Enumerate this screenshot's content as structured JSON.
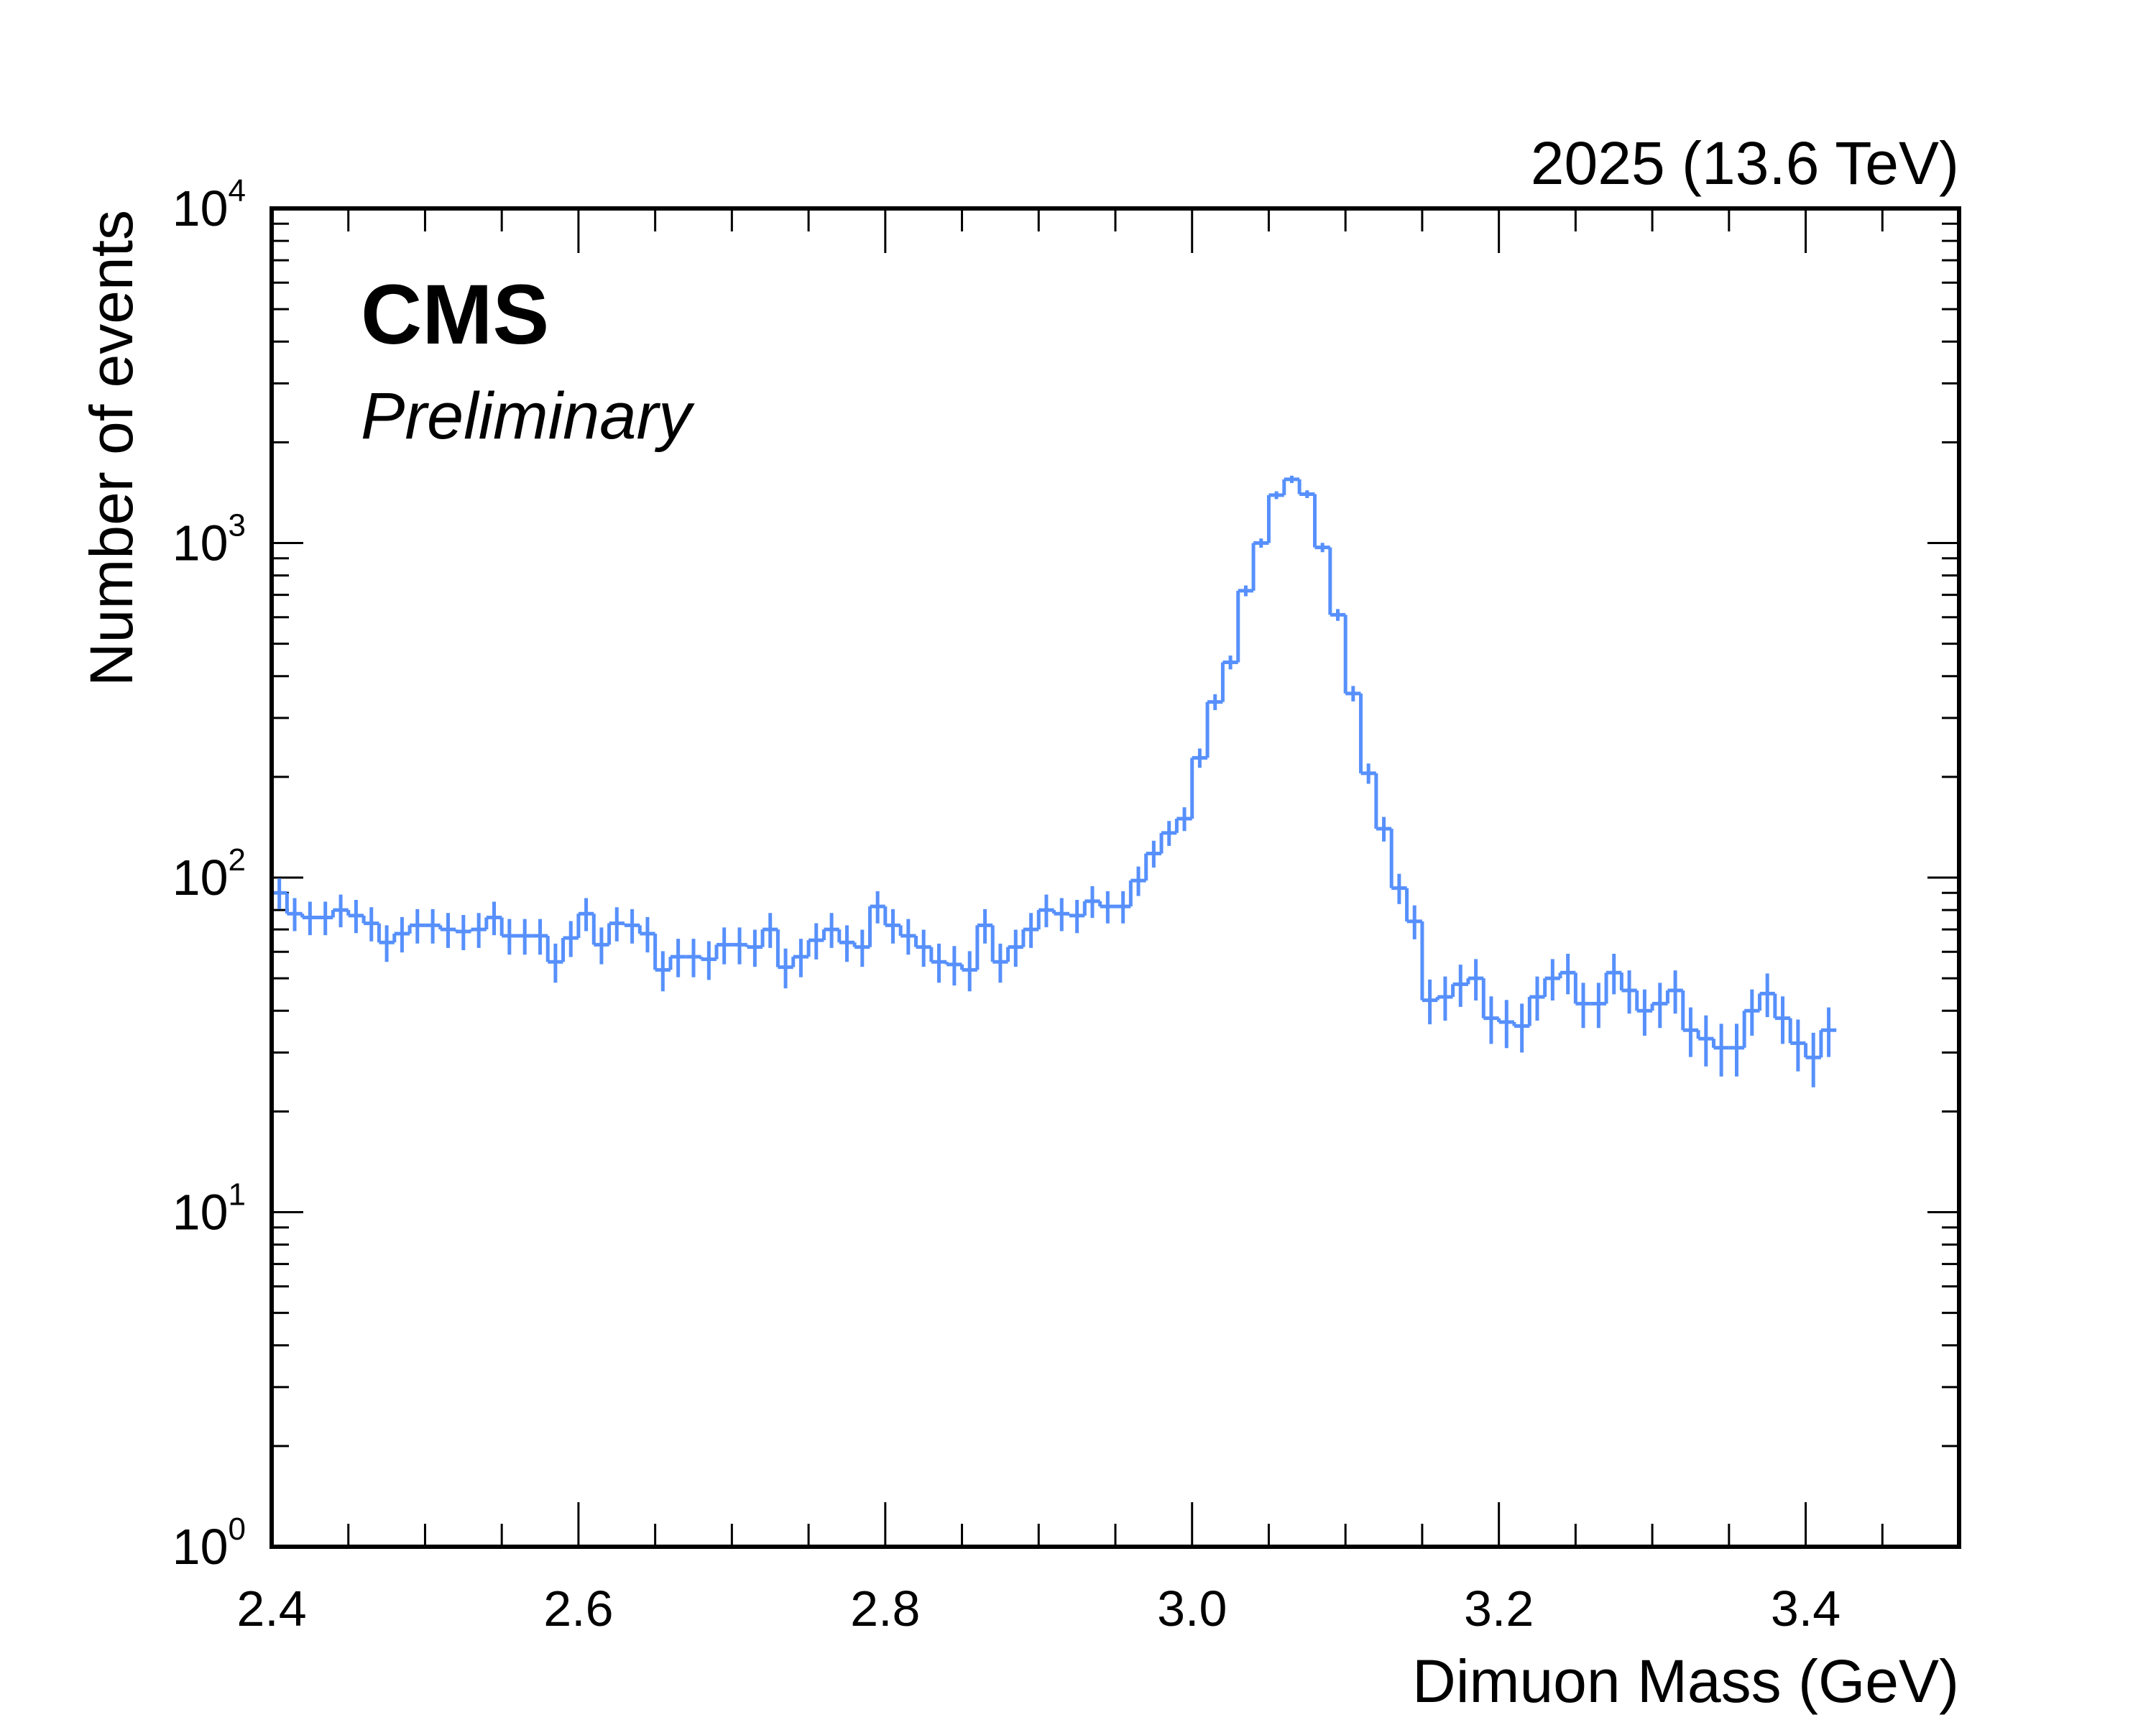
{
  "labels": {
    "experiment": "CMS",
    "status": "Preliminary",
    "lumi": "2025 (13.6 TeV)"
  },
  "chart_data": {
    "type": "histogram",
    "xlabel": "Dimuon Mass (GeV)",
    "ylabel": "Number of events",
    "xlim": [
      2.4,
      3.5
    ],
    "ylim": [
      1,
      10000
    ],
    "yscale": "log",
    "x_ticks": [
      "2.4",
      "2.6",
      "2.8",
      "3.0",
      "3.2",
      "3.4"
    ],
    "y_ticks": [
      {
        "base": "10",
        "exp": "0"
      },
      {
        "base": "10",
        "exp": "1"
      },
      {
        "base": "10",
        "exp": "2"
      },
      {
        "base": "10",
        "exp": "3"
      },
      {
        "base": "10",
        "exp": "4"
      }
    ],
    "bin_width": 0.01,
    "bin_edges_start": 2.4,
    "color": "#5790fc",
    "values": [
      90,
      78,
      76,
      76,
      80,
      77,
      73,
      64,
      68,
      72,
      72,
      70,
      69,
      70,
      76,
      67,
      67,
      67,
      56,
      66,
      78,
      63,
      73,
      72,
      68,
      53,
      58,
      58,
      57,
      63,
      63,
      62,
      70,
      54,
      58,
      65,
      70,
      64,
      62,
      82,
      72,
      67,
      62,
      56,
      55,
      53,
      72,
      56,
      62,
      70,
      80,
      78,
      77,
      85,
      82,
      82,
      98,
      118,
      136,
      150,
      228,
      335,
      440,
      720,
      1000,
      1390,
      1550,
      1400,
      970,
      610,
      355,
      205,
      140,
      93,
      74,
      43,
      44,
      48,
      50,
      38,
      37,
      36,
      44,
      50,
      52,
      42,
      42,
      52,
      46,
      40,
      42,
      46,
      35,
      33,
      31,
      31,
      40,
      45,
      38,
      32,
      29,
      35
    ]
  }
}
